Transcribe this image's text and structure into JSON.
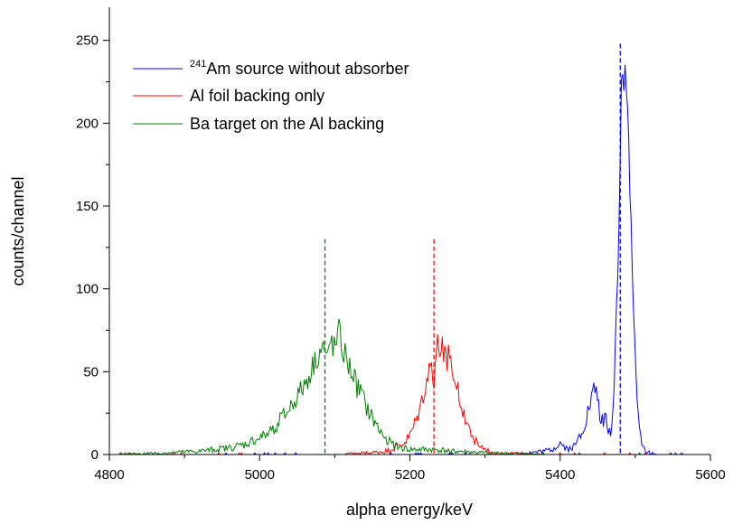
{
  "chart_data": {
    "type": "line",
    "xlabel": "alpha energy/keV",
    "ylabel": "counts/channel",
    "xlim": [
      4800,
      5600
    ],
    "ylim": [
      0,
      270
    ],
    "xticks": [
      4800,
      5000,
      5200,
      5400,
      5600
    ],
    "yticks": [
      0,
      50,
      100,
      150,
      200,
      250
    ],
    "grid": false,
    "legend_placement": "top-left",
    "series": [
      {
        "name_sup": "241",
        "name": "Am source without absorber",
        "color": "#0000ff",
        "x": [
          4800,
          4900,
          5000,
          5100,
          5200,
          5300,
          5340,
          5360,
          5380,
          5390,
          5395,
          5400,
          5410,
          5420,
          5430,
          5435,
          5440,
          5445,
          5448,
          5452,
          5456,
          5460,
          5463,
          5466,
          5470,
          5473,
          5476,
          5479,
          5481,
          5483,
          5485,
          5487,
          5489,
          5491,
          5493,
          5495,
          5498,
          5501,
          5504,
          5507,
          5510,
          5515,
          5520,
          5530,
          5560,
          5600
        ],
        "y": [
          0,
          0,
          0,
          0,
          0,
          0,
          0,
          1,
          2,
          3,
          5,
          7,
          3,
          5,
          15,
          22,
          30,
          38,
          40,
          25,
          20,
          24,
          15,
          12,
          20,
          60,
          100,
          160,
          225,
          230,
          215,
          240,
          228,
          185,
          160,
          120,
          80,
          50,
          20,
          10,
          4,
          2,
          1,
          0,
          0,
          0
        ]
      },
      {
        "name": "Al foil backing only",
        "color": "#ff0000",
        "x": [
          4800,
          5000,
          5100,
          5150,
          5170,
          5180,
          5190,
          5195,
          5200,
          5205,
          5210,
          5215,
          5220,
          5225,
          5228,
          5232,
          5236,
          5240,
          5244,
          5248,
          5252,
          5256,
          5260,
          5265,
          5270,
          5275,
          5280,
          5285,
          5290,
          5300,
          5310,
          5400,
          5600
        ],
        "y": [
          0,
          0,
          0,
          1,
          2,
          4,
          6,
          8,
          11,
          16,
          22,
          30,
          40,
          48,
          55,
          45,
          65,
          62,
          67,
          55,
          64,
          50,
          42,
          36,
          28,
          20,
          14,
          10,
          6,
          3,
          1,
          0,
          0
        ]
      },
      {
        "name": "Ba target on the Al backing",
        "color": "#008000",
        "x": [
          4800,
          4880,
          4920,
          4940,
          4960,
          4980,
          5000,
          5010,
          5020,
          5030,
          5040,
          5050,
          5060,
          5065,
          5070,
          5075,
          5080,
          5085,
          5090,
          5095,
          5100,
          5105,
          5110,
          5115,
          5120,
          5125,
          5130,
          5135,
          5140,
          5150,
          5160,
          5170,
          5180,
          5200,
          5230,
          5260,
          5300,
          5400,
          5600
        ],
        "y": [
          0,
          1,
          2,
          3,
          4,
          6,
          10,
          12,
          17,
          22,
          28,
          35,
          42,
          47,
          52,
          58,
          62,
          65,
          55,
          70,
          62,
          74,
          64,
          58,
          52,
          48,
          40,
          38,
          30,
          22,
          14,
          9,
          5,
          3,
          3,
          2,
          1,
          0,
          0
        ]
      }
    ],
    "markers": [
      {
        "x": 5087,
        "top": 130,
        "color": "#008000"
      },
      {
        "x": 5232,
        "top": 130,
        "color": "#ff0000"
      },
      {
        "x": 5480,
        "top": 248,
        "color": "#0000ff"
      }
    ]
  }
}
